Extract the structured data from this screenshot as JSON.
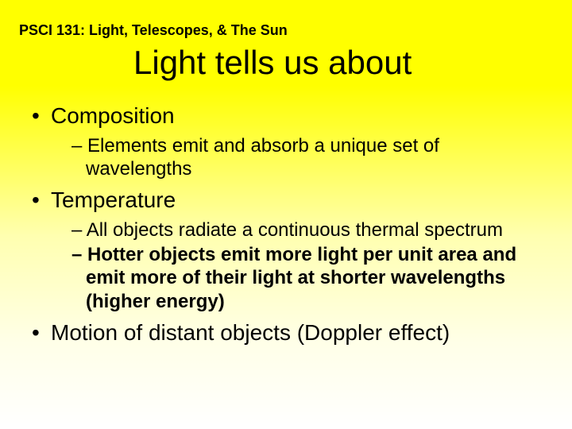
{
  "colors": {
    "bg_top": "#ffff00",
    "bg_bottom": "#ffffff",
    "text": "#000000"
  },
  "typography": {
    "family": "Arial",
    "header_size_pt": 14,
    "title_size_pt": 32,
    "bullet1_size_pt": 21,
    "bullet2_size_pt": 18
  },
  "header": "PSCI 131: Light, Telescopes, & The Sun",
  "title": "Light tells us about",
  "bullets": {
    "b1": "Composition",
    "b1_1": "Elements emit and absorb a unique set of wavelengths",
    "b2": "Temperature",
    "b2_1": "All objects radiate a continuous thermal spectrum",
    "b2_2": "Hotter objects emit more light per unit area and emit more of their light at shorter wavelengths (higher energy)",
    "b3": "Motion of distant objects (Doppler effect)"
  }
}
